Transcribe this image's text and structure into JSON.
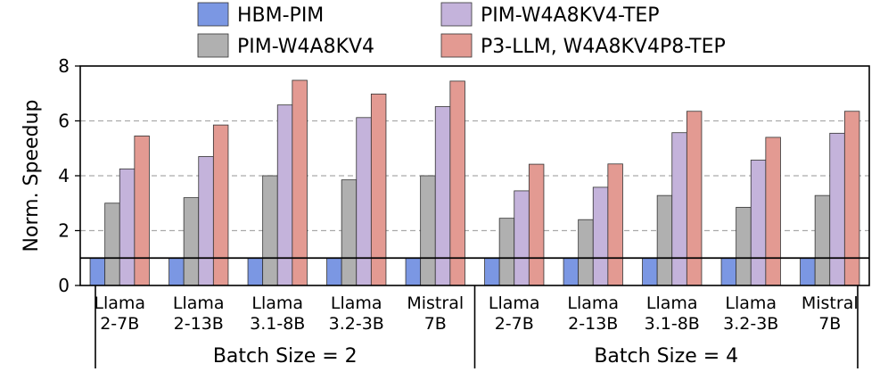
{
  "chart_data": {
    "type": "bar",
    "ylabel": "Norm. Speedup",
    "ylim": [
      0,
      8
    ],
    "yticks": [
      "0",
      "2",
      "4",
      "6",
      "8"
    ],
    "grid": "horizontal dashed",
    "baseline": 1,
    "legend_position": "top",
    "colors": {
      "HBM-PIM": "#7b97e3",
      "PIM-W4A8KV4": "#b0b0b0",
      "PIM-W4A8KV4-TEP": "#c4b3db",
      "P3-LLM, W4A8KV4P8-TEP": "#e39a92"
    },
    "legend": {
      "items": [
        {
          "name": "HBM-PIM"
        },
        {
          "name": "PIM-W4A8KV4-TEP"
        },
        {
          "name": "PIM-W4A8KV4"
        },
        {
          "name": "P3-LLM, W4A8KV4P8-TEP"
        }
      ]
    },
    "groups": [
      "Batch Size = 2",
      "Batch Size = 4"
    ],
    "categories": [
      {
        "line1": "Llama",
        "line2": "2-7B"
      },
      {
        "line1": "Llama",
        "line2": "2-13B"
      },
      {
        "line1": "Llama",
        "line2": "3.1-8B"
      },
      {
        "line1": "Llama",
        "line2": "3.2-3B"
      },
      {
        "line1": "Mistral",
        "line2": "7B"
      },
      {
        "line1": "Llama",
        "line2": "2-7B"
      },
      {
        "line1": "Llama",
        "line2": "2-13B"
      },
      {
        "line1": "Llama",
        "line2": "3.1-8B"
      },
      {
        "line1": "Llama",
        "line2": "3.2-3B"
      },
      {
        "line1": "Mistral",
        "line2": "7B"
      }
    ],
    "series": [
      {
        "name": "HBM-PIM",
        "values": [
          1,
          1,
          1,
          1,
          1,
          1,
          1,
          1,
          1,
          1
        ]
      },
      {
        "name": "PIM-W4A8KV4",
        "values": [
          3.0,
          3.2,
          4.0,
          3.85,
          4.0,
          2.45,
          2.4,
          3.28,
          2.85,
          3.28
        ]
      },
      {
        "name": "PIM-W4A8KV4-TEP",
        "values": [
          4.25,
          4.7,
          6.58,
          6.12,
          6.52,
          3.45,
          3.58,
          5.57,
          4.57,
          5.55
        ]
      },
      {
        "name": "P3-LLM, W4A8KV4P8-TEP",
        "values": [
          5.45,
          5.85,
          7.48,
          6.98,
          7.45,
          4.42,
          4.43,
          6.35,
          5.4,
          6.35
        ]
      }
    ]
  }
}
